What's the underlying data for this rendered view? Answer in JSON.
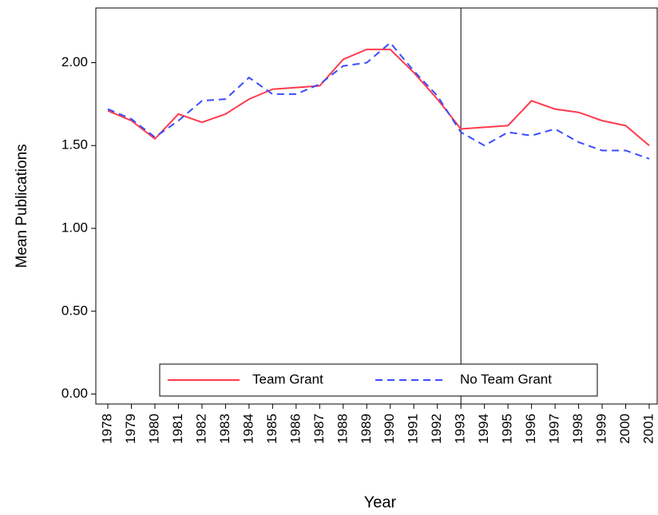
{
  "chart_data": {
    "type": "line",
    "x_label": "Year",
    "y_label": "Mean Publications",
    "x": [
      1978,
      1979,
      1980,
      1981,
      1982,
      1983,
      1984,
      1985,
      1986,
      1987,
      1988,
      1989,
      1990,
      1991,
      1992,
      1993,
      1994,
      1995,
      1996,
      1997,
      1998,
      1999,
      2000,
      2001
    ],
    "series": [
      {
        "name": "Team Grant",
        "color": "#ff3b4e",
        "dash": false,
        "values": [
          1.71,
          1.65,
          1.54,
          1.69,
          1.64,
          1.69,
          1.78,
          1.84,
          1.85,
          1.86,
          2.02,
          2.08,
          2.08,
          1.94,
          1.78,
          1.6,
          1.61,
          1.62,
          1.77,
          1.72,
          1.7,
          1.65,
          1.62,
          1.5
        ]
      },
      {
        "name": "No Team Grant",
        "color": "#3a4cff",
        "dash": true,
        "values": [
          1.72,
          1.66,
          1.55,
          1.65,
          1.77,
          1.78,
          1.91,
          1.81,
          1.81,
          1.87,
          1.98,
          2.0,
          2.12,
          1.95,
          1.8,
          1.58,
          1.5,
          1.58,
          1.56,
          1.6,
          1.52,
          1.47,
          1.47,
          1.42
        ]
      }
    ],
    "xlim": [
      1977.49,
      2001.34
    ],
    "xticks": [
      1978,
      1979,
      1980,
      1981,
      1982,
      1983,
      1984,
      1985,
      1986,
      1987,
      1988,
      1989,
      1990,
      1991,
      1992,
      1993,
      1994,
      1995,
      1996,
      1997,
      1998,
      1999,
      2000,
      2001
    ],
    "ylim": [
      -0.06,
      2.33
    ],
    "yticks": [
      {
        "value": 0,
        "label": "0.00"
      },
      {
        "value": 0.5,
        "label": "0.50"
      },
      {
        "value": 1,
        "label": "1.00"
      },
      {
        "value": 1.5,
        "label": "1.50"
      },
      {
        "value": 2,
        "label": "2.00"
      }
    ],
    "vline": 1993,
    "legend": "bottom"
  }
}
